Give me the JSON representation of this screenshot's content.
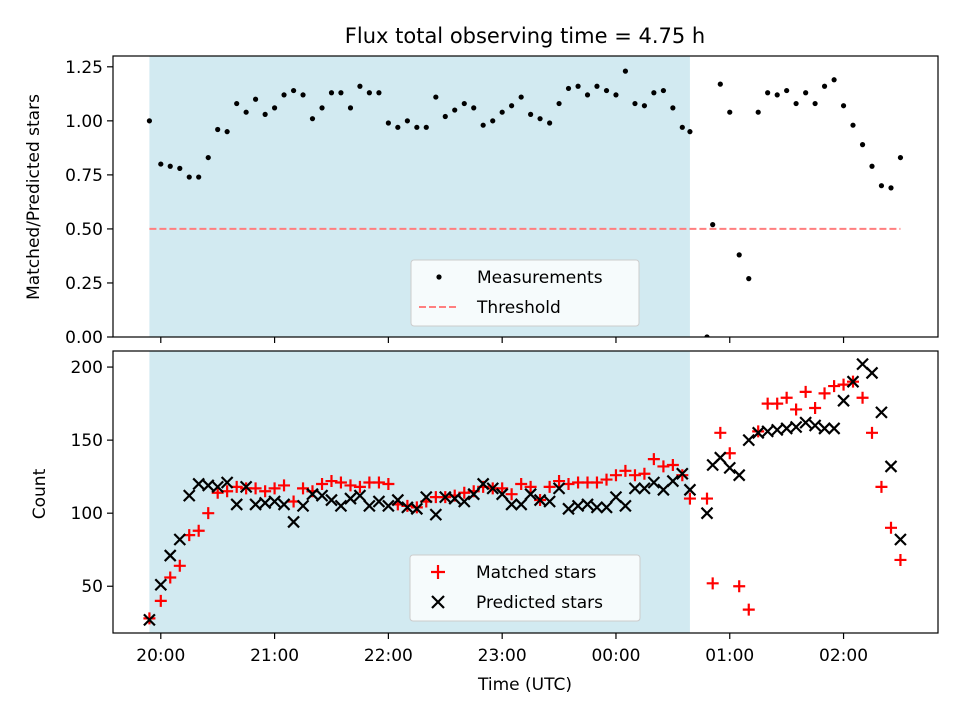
{
  "title": "Flux total observing time = 4.75 h",
  "colors": {
    "shade": "#add8e6",
    "measurements": "#000000",
    "threshold": "#ff7f7f",
    "matched": "#ff0000",
    "predicted": "#000000"
  },
  "chart_data": [
    {
      "type": "scatter",
      "ylabel": "Matched/Predicted stars",
      "ylim": [
        0,
        1.3
      ],
      "yticks": [
        "0.00",
        "0.25",
        "0.50",
        "0.75",
        "1.00",
        "1.25"
      ],
      "x_unit": "hours after 20:00 UTC",
      "xlim": [
        -0.42,
        6.83
      ],
      "shaded_interval": [
        -0.1,
        4.65
      ],
      "threshold": {
        "name": "Threshold",
        "value": 0.5,
        "x_range": [
          -0.1,
          6.5
        ],
        "style": "dashed"
      },
      "series": [
        {
          "name": "Measurements",
          "marker": "dot",
          "x": [
            -0.1,
            0.0,
            0.083,
            0.167,
            0.25,
            0.333,
            0.417,
            0.5,
            0.583,
            0.667,
            0.75,
            0.833,
            0.917,
            1.0,
            1.083,
            1.167,
            1.25,
            1.333,
            1.417,
            1.5,
            1.583,
            1.667,
            1.75,
            1.833,
            1.917,
            2.0,
            2.083,
            2.167,
            2.25,
            2.333,
            2.417,
            2.5,
            2.583,
            2.667,
            2.75,
            2.833,
            2.917,
            3.0,
            3.083,
            3.167,
            3.25,
            3.333,
            3.417,
            3.5,
            3.583,
            3.667,
            3.75,
            3.833,
            3.917,
            4.0,
            4.083,
            4.167,
            4.25,
            4.333,
            4.417,
            4.5,
            4.583,
            4.65,
            4.8,
            4.85,
            4.917,
            5.0,
            5.083,
            5.167,
            5.25,
            5.333,
            5.417,
            5.5,
            5.583,
            5.667,
            5.75,
            5.833,
            5.917,
            6.0,
            6.083,
            6.167,
            6.25,
            6.333,
            6.417,
            6.5
          ],
          "y": [
            1.0,
            0.8,
            0.79,
            0.78,
            0.74,
            0.74,
            0.83,
            0.96,
            0.95,
            1.08,
            1.04,
            1.1,
            1.03,
            1.06,
            1.12,
            1.14,
            1.12,
            1.01,
            1.06,
            1.13,
            1.13,
            1.06,
            1.16,
            1.13,
            1.13,
            0.99,
            0.97,
            1.0,
            0.97,
            0.97,
            1.11,
            1.02,
            1.05,
            1.08,
            1.06,
            0.98,
            1.0,
            1.04,
            1.07,
            1.11,
            1.03,
            1.01,
            0.99,
            1.08,
            1.15,
            1.16,
            1.12,
            1.16,
            1.14,
            1.12,
            1.23,
            1.08,
            1.07,
            1.13,
            1.14,
            1.06,
            0.97,
            0.95,
            0.0,
            0.52,
            1.17,
            1.04,
            0.38,
            0.27,
            1.04,
            1.13,
            1.12,
            1.14,
            1.08,
            1.13,
            1.08,
            1.16,
            1.19,
            1.07,
            0.98,
            0.89,
            0.79,
            0.7,
            0.69,
            0.83
          ]
        }
      ],
      "legend": {
        "placement": "bottom-center",
        "entries": [
          "Measurements",
          "Threshold"
        ]
      }
    },
    {
      "type": "scatter",
      "ylabel": "Count",
      "xlabel": "Time (UTC)",
      "ylim": [
        18,
        211
      ],
      "yticks": [
        "50",
        "100",
        "150",
        "200"
      ],
      "x_unit": "hours after 20:00 UTC",
      "xlim": [
        -0.42,
        6.83
      ],
      "xtick_labels": [
        "20:00",
        "21:00",
        "22:00",
        "23:00",
        "00:00",
        "01:00",
        "02:00"
      ],
      "shaded_interval": [
        -0.1,
        4.65
      ],
      "series": [
        {
          "name": "Matched stars",
          "marker": "plus",
          "x": [
            -0.1,
            0.0,
            0.083,
            0.167,
            0.25,
            0.333,
            0.417,
            0.5,
            0.583,
            0.667,
            0.75,
            0.833,
            0.917,
            1.0,
            1.083,
            1.167,
            1.25,
            1.333,
            1.417,
            1.5,
            1.583,
            1.667,
            1.75,
            1.833,
            1.917,
            2.0,
            2.083,
            2.167,
            2.25,
            2.333,
            2.417,
            2.5,
            2.583,
            2.667,
            2.75,
            2.833,
            2.917,
            3.0,
            3.083,
            3.167,
            3.25,
            3.333,
            3.417,
            3.5,
            3.583,
            3.667,
            3.75,
            3.833,
            3.917,
            4.0,
            4.083,
            4.167,
            4.25,
            4.333,
            4.417,
            4.5,
            4.583,
            4.65,
            4.8,
            4.85,
            4.917,
            5.0,
            5.083,
            5.167,
            5.25,
            5.333,
            5.417,
            5.5,
            5.583,
            5.667,
            5.75,
            5.833,
            5.917,
            6.0,
            6.083,
            6.167,
            6.25,
            6.333,
            6.417,
            6.5
          ],
          "y": [
            28,
            40,
            56,
            64,
            85,
            88,
            100,
            114,
            115,
            118,
            117,
            117,
            115,
            117,
            119,
            108,
            117,
            115,
            120,
            122,
            121,
            119,
            118,
            121,
            121,
            120,
            106,
            105,
            104,
            108,
            111,
            111,
            112,
            114,
            115,
            118,
            117,
            117,
            113,
            120,
            118,
            109,
            118,
            122,
            120,
            121,
            121,
            121,
            123,
            126,
            129,
            126,
            127,
            137,
            132,
            133,
            126,
            110,
            110,
            52,
            155,
            141,
            50,
            34,
            156,
            175,
            175,
            179,
            171,
            183,
            172,
            182,
            187,
            188,
            190,
            179,
            155,
            118,
            90,
            68
          ]
        },
        {
          "name": "Predicted stars",
          "marker": "x",
          "x": [
            -0.1,
            0.0,
            0.083,
            0.167,
            0.25,
            0.333,
            0.417,
            0.5,
            0.583,
            0.667,
            0.75,
            0.833,
            0.917,
            1.0,
            1.083,
            1.167,
            1.25,
            1.333,
            1.417,
            1.5,
            1.583,
            1.667,
            1.75,
            1.833,
            1.917,
            2.0,
            2.083,
            2.167,
            2.25,
            2.333,
            2.417,
            2.5,
            2.583,
            2.667,
            2.75,
            2.833,
            2.917,
            3.0,
            3.083,
            3.167,
            3.25,
            3.333,
            3.417,
            3.5,
            3.583,
            3.667,
            3.75,
            3.833,
            3.917,
            4.0,
            4.083,
            4.167,
            4.25,
            4.333,
            4.417,
            4.5,
            4.583,
            4.65,
            4.8,
            4.85,
            4.917,
            5.0,
            5.083,
            5.167,
            5.25,
            5.333,
            5.417,
            5.5,
            5.583,
            5.667,
            5.75,
            5.833,
            5.917,
            6.0,
            6.083,
            6.167,
            6.25,
            6.333,
            6.417,
            6.5
          ],
          "y": [
            27,
            51,
            71,
            82,
            112,
            120,
            119,
            118,
            121,
            106,
            118,
            106,
            107,
            108,
            106,
            94,
            105,
            113,
            112,
            109,
            105,
            110,
            112,
            105,
            108,
            105,
            109,
            104,
            103,
            111,
            99,
            111,
            110,
            108,
            113,
            120,
            117,
            113,
            106,
            106,
            113,
            109,
            108,
            117,
            103,
            105,
            106,
            104,
            104,
            111,
            105,
            117,
            117,
            121,
            116,
            122,
            127,
            116,
            100,
            133,
            138,
            131,
            126,
            150,
            155,
            156,
            157,
            158,
            159,
            162,
            160,
            158,
            158,
            177,
            190,
            202,
            196,
            169,
            132,
            82
          ]
        }
      ],
      "legend": {
        "placement": "bottom-center",
        "entries": [
          "Matched stars",
          "Predicted stars"
        ]
      }
    }
  ]
}
